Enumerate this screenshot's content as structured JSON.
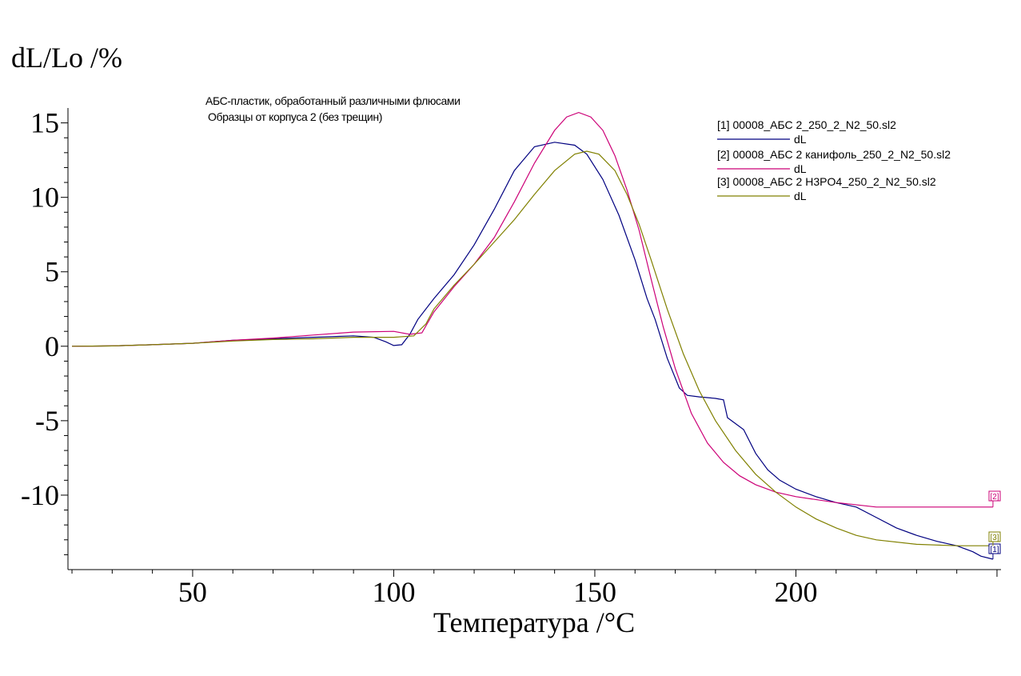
{
  "chart_data": {
    "type": "line",
    "ylabel": "dL/Lo /%",
    "xlabel": "Температура /°C",
    "annotation": [
      "АБС-пластик, обработанный различными флюсами",
      "Образцы от корпуса 2 (без трещин)"
    ],
    "xlim": [
      19,
      251
    ],
    "ylim": [
      -15,
      16
    ],
    "xticks": [
      50,
      100,
      150,
      200
    ],
    "yticks": [
      15,
      10,
      5,
      0,
      -5,
      -10
    ],
    "grid": false,
    "legend_position": "top-right",
    "series": [
      {
        "name": "[1] 00008_АБС 2_250_2_N2_50.sl2",
        "line_label": "dL",
        "tag": "[1]",
        "color": "#000080",
        "points": [
          [
            20,
            0
          ],
          [
            30,
            0.02
          ],
          [
            40,
            0.1
          ],
          [
            50,
            0.2
          ],
          [
            60,
            0.4
          ],
          [
            70,
            0.5
          ],
          [
            80,
            0.6
          ],
          [
            90,
            0.7
          ],
          [
            95,
            0.6
          ],
          [
            98,
            0.3
          ],
          [
            100,
            0.05
          ],
          [
            102,
            0.1
          ],
          [
            104,
            0.8
          ],
          [
            106,
            1.8
          ],
          [
            110,
            3.2
          ],
          [
            115,
            4.8
          ],
          [
            120,
            6.8
          ],
          [
            125,
            9.2
          ],
          [
            130,
            11.8
          ],
          [
            135,
            13.4
          ],
          [
            140,
            13.7
          ],
          [
            145,
            13.5
          ],
          [
            148,
            12.9
          ],
          [
            152,
            11.2
          ],
          [
            156,
            8.8
          ],
          [
            160,
            5.8
          ],
          [
            163,
            3.2
          ],
          [
            165,
            1.8
          ],
          [
            168,
            -0.8
          ],
          [
            171,
            -2.8
          ],
          [
            173,
            -3.3
          ],
          [
            176,
            -3.4
          ],
          [
            180,
            -3.5
          ],
          [
            182,
            -3.6
          ],
          [
            183,
            -4.8
          ],
          [
            187,
            -5.6
          ],
          [
            190,
            -7.2
          ],
          [
            193,
            -8.3
          ],
          [
            196,
            -9.0
          ],
          [
            200,
            -9.6
          ],
          [
            205,
            -10.1
          ],
          [
            210,
            -10.5
          ],
          [
            215,
            -10.8
          ],
          [
            220,
            -11.5
          ],
          [
            225,
            -12.2
          ],
          [
            230,
            -12.7
          ],
          [
            235,
            -13.1
          ],
          [
            240,
            -13.4
          ],
          [
            244,
            -13.8
          ],
          [
            246,
            -14.1
          ],
          [
            249,
            -14.3
          ]
        ]
      },
      {
        "name": "[2] 00008_АБС 2 канифоль_250_2_N2_50.sl2",
        "line_label": "dL",
        "tag": "[2]",
        "color": "#cc0077",
        "points": [
          [
            20,
            0
          ],
          [
            30,
            0.02
          ],
          [
            40,
            0.1
          ],
          [
            50,
            0.2
          ],
          [
            60,
            0.4
          ],
          [
            70,
            0.55
          ],
          [
            80,
            0.75
          ],
          [
            90,
            0.95
          ],
          [
            100,
            1.0
          ],
          [
            104,
            0.8
          ],
          [
            107,
            0.9
          ],
          [
            110,
            2.3
          ],
          [
            115,
            4.0
          ],
          [
            120,
            5.5
          ],
          [
            125,
            7.3
          ],
          [
            130,
            9.7
          ],
          [
            135,
            12.3
          ],
          [
            140,
            14.5
          ],
          [
            143,
            15.4
          ],
          [
            146,
            15.7
          ],
          [
            149,
            15.4
          ],
          [
            152,
            14.5
          ],
          [
            155,
            12.8
          ],
          [
            158,
            10.5
          ],
          [
            161,
            7.8
          ],
          [
            164,
            4.5
          ],
          [
            167,
            1.3
          ],
          [
            170,
            -1.5
          ],
          [
            174,
            -4.5
          ],
          [
            178,
            -6.5
          ],
          [
            182,
            -7.8
          ],
          [
            186,
            -8.7
          ],
          [
            190,
            -9.3
          ],
          [
            195,
            -9.8
          ],
          [
            200,
            -10.1
          ],
          [
            210,
            -10.5
          ],
          [
            220,
            -10.8
          ],
          [
            230,
            -10.8
          ],
          [
            240,
            -10.8
          ],
          [
            249,
            -10.8
          ]
        ]
      },
      {
        "name": "[3] 00008_АБС 2 H3PO4_250_2_N2_50.sl2",
        "line_label": "dL",
        "tag": "[3]",
        "color": "#808000",
        "points": [
          [
            20,
            0
          ],
          [
            30,
            0.02
          ],
          [
            40,
            0.1
          ],
          [
            50,
            0.2
          ],
          [
            60,
            0.35
          ],
          [
            70,
            0.45
          ],
          [
            80,
            0.5
          ],
          [
            90,
            0.6
          ],
          [
            100,
            0.6
          ],
          [
            105,
            0.7
          ],
          [
            108,
            1.5
          ],
          [
            110,
            2.5
          ],
          [
            115,
            4.1
          ],
          [
            120,
            5.5
          ],
          [
            125,
            7.0
          ],
          [
            130,
            8.5
          ],
          [
            135,
            10.2
          ],
          [
            140,
            11.8
          ],
          [
            145,
            12.9
          ],
          [
            148,
            13.1
          ],
          [
            151,
            12.9
          ],
          [
            155,
            11.8
          ],
          [
            158,
            10.2
          ],
          [
            161,
            8.2
          ],
          [
            164,
            5.8
          ],
          [
            168,
            2.5
          ],
          [
            172,
            -0.5
          ],
          [
            176,
            -3.0
          ],
          [
            180,
            -5.0
          ],
          [
            185,
            -7.0
          ],
          [
            190,
            -8.6
          ],
          [
            195,
            -9.8
          ],
          [
            200,
            -10.8
          ],
          [
            205,
            -11.6
          ],
          [
            210,
            -12.2
          ],
          [
            215,
            -12.7
          ],
          [
            220,
            -13.0
          ],
          [
            230,
            -13.3
          ],
          [
            240,
            -13.4
          ],
          [
            249,
            -13.4
          ]
        ]
      }
    ]
  }
}
